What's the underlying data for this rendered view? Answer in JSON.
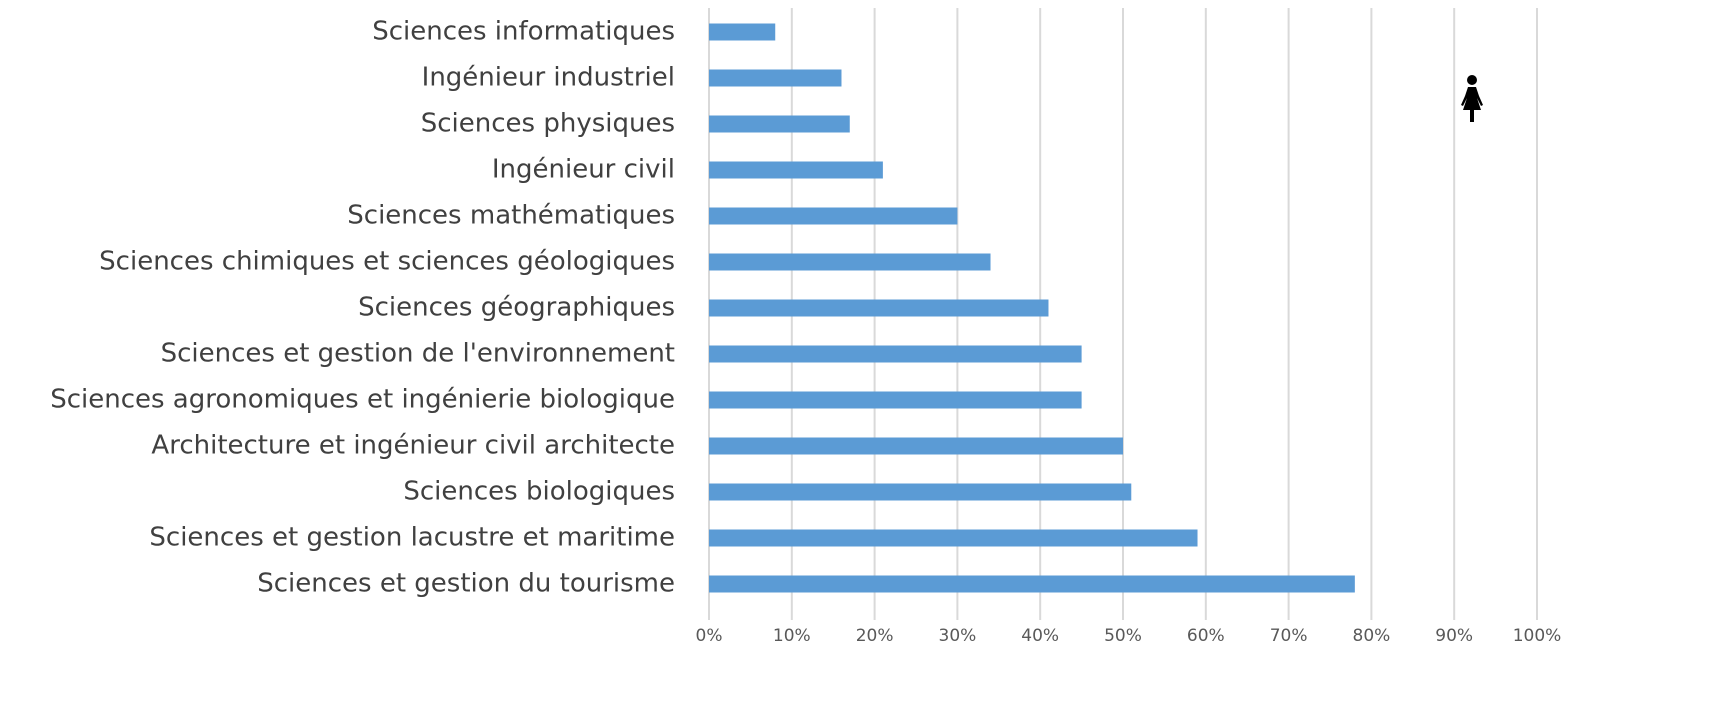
{
  "chart_data": {
    "type": "hbar",
    "categories": [
      "Sciences informatiques",
      "Ingénieur industriel",
      "Sciences physiques",
      "Ingénieur civil",
      "Sciences mathématiques",
      "Sciences chimiques et sciences géologiques",
      "Sciences géographiques",
      "Sciences et gestion de l'environnement",
      "Sciences agronomiques et ingénierie biologique",
      "Architecture et ingénieur civil architecte",
      "Sciences biologiques",
      "Sciences et gestion lacustre et maritime",
      "Sciences et gestion du tourisme"
    ],
    "values": [
      8,
      16,
      17,
      21,
      30,
      34,
      41,
      45,
      45,
      50,
      51,
      59,
      78
    ],
    "color": "#5b9bd5",
    "xlim": [
      0,
      100
    ],
    "xticks": [
      {
        "value": 0,
        "label": "0%"
      },
      {
        "value": 10,
        "label": "10%"
      },
      {
        "value": 20,
        "label": "20%"
      },
      {
        "value": 30,
        "label": "30%"
      },
      {
        "value": 40,
        "label": "40%"
      },
      {
        "value": 50,
        "label": "50%"
      },
      {
        "value": 60,
        "label": "60%"
      },
      {
        "value": 70,
        "label": "70%"
      },
      {
        "value": 80,
        "label": "80%"
      },
      {
        "value": 90,
        "label": "90%"
      },
      {
        "value": 100,
        "label": "100%"
      }
    ],
    "grid": true
  }
}
